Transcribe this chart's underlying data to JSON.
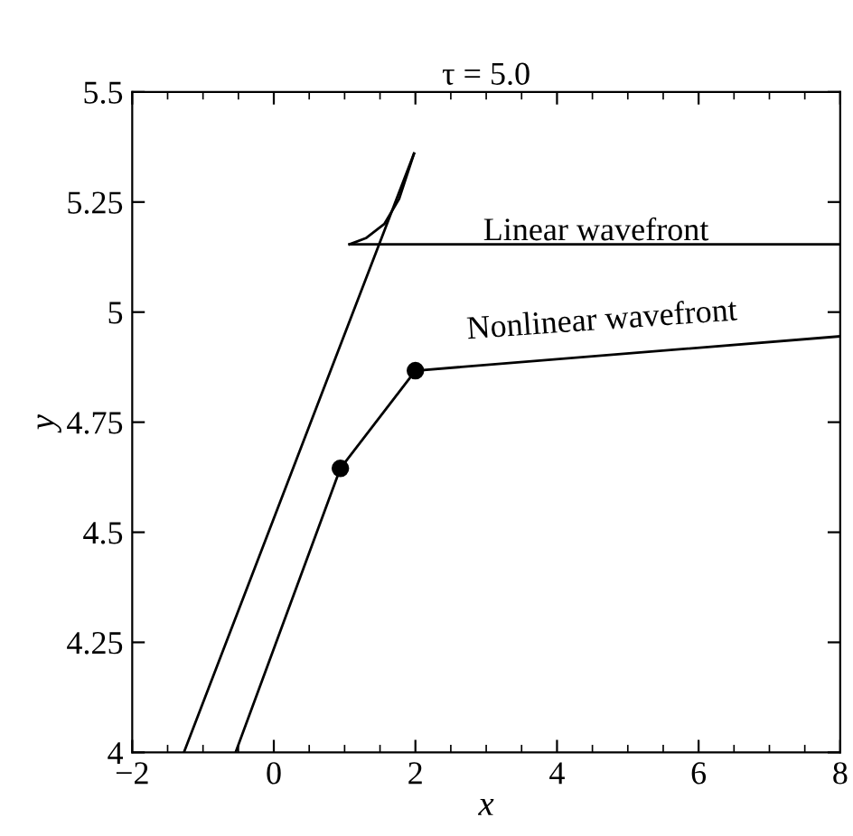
{
  "chart_data": {
    "type": "line",
    "title": "τ = 5.0",
    "xlabel": "x",
    "ylabel": "y",
    "xlim": [
      -2,
      8
    ],
    "ylim": [
      4,
      5.5
    ],
    "xticks": [
      {
        "value": -2,
        "label": "−2"
      },
      0,
      2,
      4,
      6,
      8
    ],
    "yticks": [
      4,
      4.25,
      4.5,
      4.75,
      5,
      5.25,
      5.5
    ],
    "grid": false,
    "legend": false,
    "marker": "none",
    "line_style": "solid",
    "series": [
      {
        "color": "#000000",
        "x": [
          -1.27,
          1.98
        ],
        "values": [
          4,
          5.36
        ]
      },
      {
        "color": "#000000",
        "x": [
          1.07,
          1.3,
          1.56,
          1.77,
          1.98
        ],
        "values": [
          5.154,
          5.168,
          5.2,
          5.257,
          5.36
        ]
      },
      {
        "color": "#000000",
        "x": [
          1.07,
          8
        ],
        "values": [
          5.154,
          5.154
        ]
      },
      {
        "color": "#000000",
        "x": [
          -0.54,
          0.94,
          2.0,
          8
        ],
        "values": [
          4,
          4.645,
          4.867,
          4.945
        ]
      },
      {
        "type": "scatter",
        "marker": "circle",
        "color": "#000000",
        "x": [
          0.94,
          2.0
        ],
        "values": [
          4.645,
          4.867
        ]
      }
    ],
    "annotations": [
      "Linear wavefront",
      "Nonlinear wavefront"
    ]
  }
}
